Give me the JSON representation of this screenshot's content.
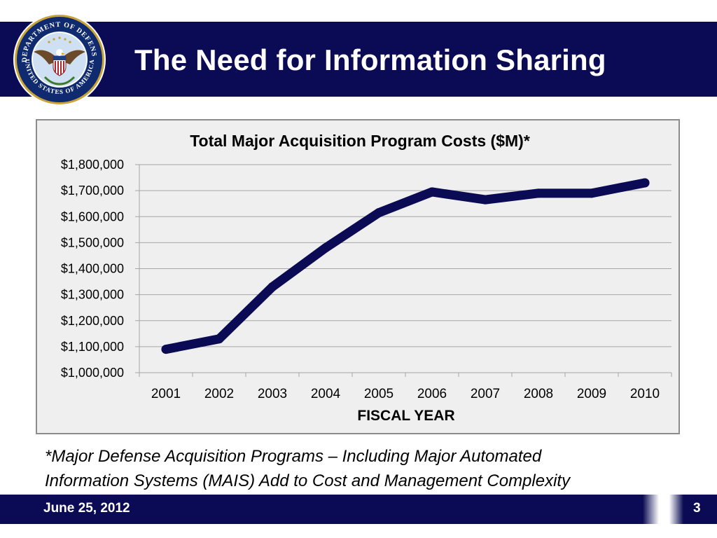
{
  "slide": {
    "title": "The Need for Information Sharing",
    "footnote_line1": "*Major Defense Acquisition Programs – Including Major Automated",
    "footnote_line2": "Information Systems (MAIS) Add to Cost and Management Complexity",
    "date": "June 25, 2012",
    "page_number": "3"
  },
  "seal": {
    "top_text": "DEPARTMENT OF DEFENSE",
    "bottom_text": "UNITED STATES OF AMERICA"
  },
  "colors": {
    "banner": "#0b0b55",
    "line": "#0b0b55",
    "chart_bg": "#efefef",
    "grid": "#a6a6a6"
  },
  "chart_data": {
    "type": "line",
    "title": "Total Major Acquisition Program Costs ($M)*",
    "xlabel": "FISCAL YEAR",
    "ylabel": "",
    "categories": [
      "2001",
      "2002",
      "2003",
      "2004",
      "2005",
      "2006",
      "2007",
      "2008",
      "2009",
      "2010"
    ],
    "series": [
      {
        "values": [
          1090000,
          1130000,
          1330000,
          1480000,
          1615000,
          1695000,
          1665000,
          1690000,
          1690000,
          1730000
        ]
      }
    ],
    "ylim": [
      1000000,
      1800000
    ],
    "yticks": [
      1000000,
      1100000,
      1200000,
      1300000,
      1400000,
      1500000,
      1600000,
      1700000,
      1800000
    ],
    "ytick_labels": [
      "$1,000,000",
      "$1,100,000",
      "$1,200,000",
      "$1,300,000",
      "$1,400,000",
      "$1,500,000",
      "$1,600,000",
      "$1,700,000",
      "$1,800,000"
    ],
    "grid": true,
    "legend": "none"
  }
}
